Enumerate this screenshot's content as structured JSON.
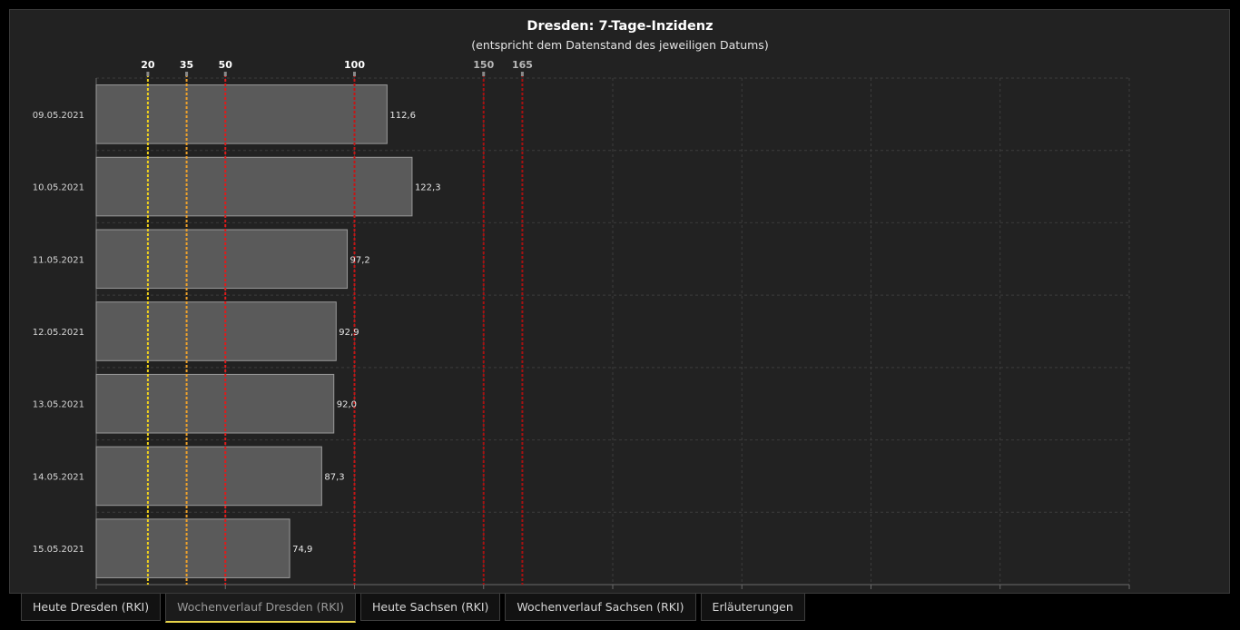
{
  "chart_data": {
    "type": "bar",
    "orientation": "horizontal",
    "title": "Dresden: 7-Tage-Inzidenz",
    "subtitle": "(entspricht dem Datenstand des jeweiligen Datums)",
    "categories": [
      "09.05.2021",
      "10.05.2021",
      "11.05.2021",
      "12.05.2021",
      "13.05.2021",
      "14.05.2021",
      "15.05.2021"
    ],
    "values": [
      112.6,
      122.3,
      97.2,
      92.9,
      92.0,
      87.3,
      74.9
    ],
    "value_labels": [
      "112,6",
      "122,3",
      "97,2",
      "92,9",
      "92,0",
      "87,3",
      "74,9"
    ],
    "xlim": [
      0,
      400
    ],
    "grid": true,
    "thresholds": [
      {
        "value": 20,
        "label": "20",
        "color": "#f2d21b"
      },
      {
        "value": 35,
        "label": "35",
        "color": "#f0a22a"
      },
      {
        "value": 50,
        "label": "50",
        "color": "#e21a1a"
      },
      {
        "value": 100,
        "label": "100",
        "color": "#c41515"
      },
      {
        "value": 150,
        "label": "150",
        "color": "#a81010"
      },
      {
        "value": 165,
        "label": "165",
        "color": "#a81010"
      }
    ],
    "bar_color": "#5a5a5a"
  },
  "tabs": [
    {
      "label": "Heute Dresden (RKI)",
      "active": false
    },
    {
      "label": "Wochenverlauf Dresden (RKI)",
      "active": true
    },
    {
      "label": "Heute Sachsen (RKI)",
      "active": false
    },
    {
      "label": "Wochenverlauf Sachsen (RKI)",
      "active": false
    },
    {
      "label": "Erläuterungen",
      "active": false
    }
  ]
}
